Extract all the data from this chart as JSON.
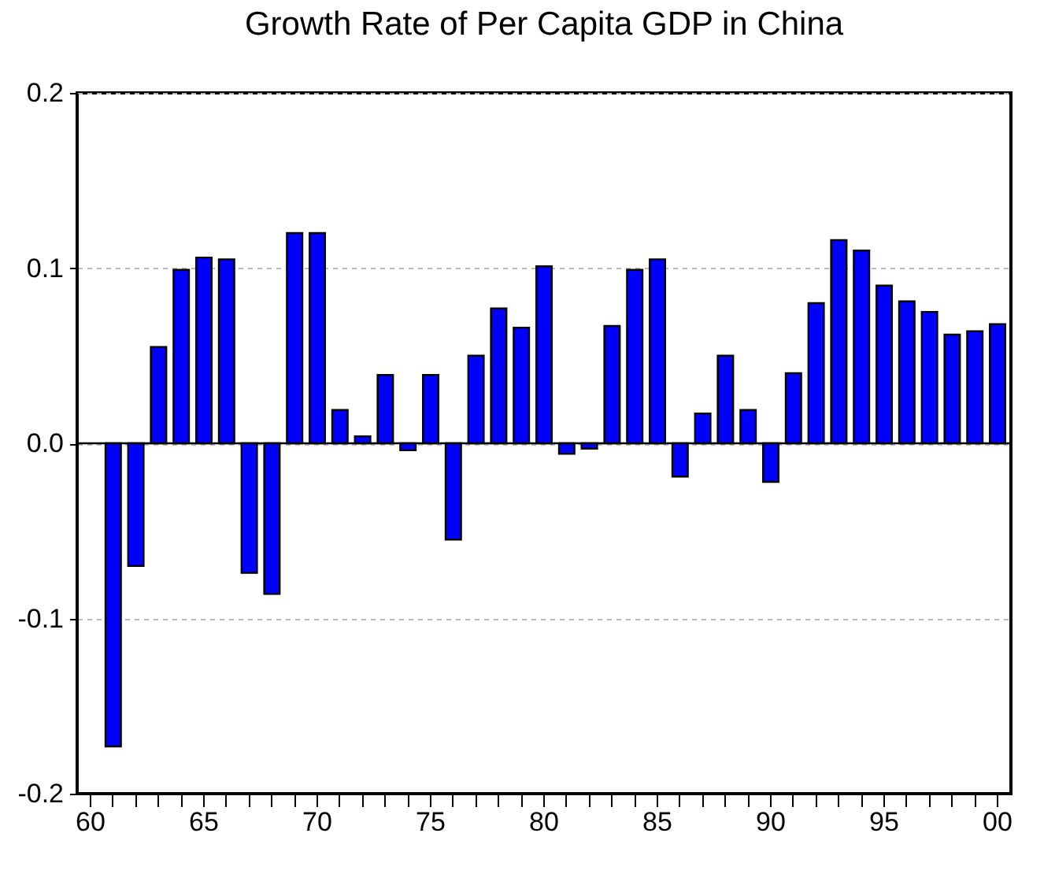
{
  "chart_data": {
    "type": "bar",
    "title": "Growth Rate of Per Capita GDP in China",
    "categories": [
      "60",
      null,
      null,
      null,
      null,
      "65",
      null,
      null,
      null,
      null,
      "70",
      null,
      null,
      null,
      null,
      "75",
      null,
      null,
      null,
      null,
      "80",
      null,
      null,
      null,
      null,
      "85",
      null,
      null,
      null,
      null,
      "90",
      null,
      null,
      null,
      null,
      "95",
      null,
      null,
      null,
      null,
      "00"
    ],
    "series": [
      {
        "color": "#0000ff",
        "values": [
          null,
          -0.173,
          -0.07,
          0.055,
          0.099,
          0.106,
          0.105,
          -0.074,
          -0.086,
          0.12,
          0.12,
          0.019,
          0.004,
          0.039,
          -0.004,
          0.039,
          -0.055,
          0.05,
          0.077,
          0.066,
          0.101,
          -0.006,
          -0.003,
          0.067,
          0.099,
          0.105,
          -0.019,
          0.017,
          0.05,
          0.019,
          -0.022,
          0.04,
          0.08,
          0.116,
          0.11,
          0.09,
          0.081,
          0.075,
          0.062,
          0.064,
          0.068
        ]
      }
    ],
    "ylim": [
      -0.2,
      0.2
    ],
    "yticks": [
      -0.2,
      -0.1,
      {
        "value": 0,
        "label": "0.0"
      },
      0.1,
      0.2
    ],
    "grid": "y",
    "ref_lines": [
      {
        "axis": "y",
        "value": 0,
        "color": "#000000"
      }
    ]
  }
}
